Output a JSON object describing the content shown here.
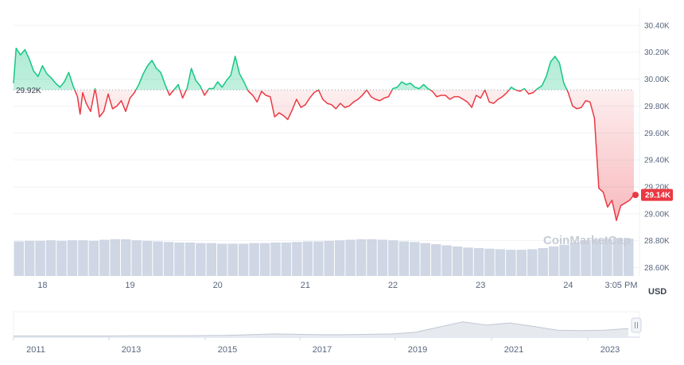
{
  "colors": {
    "up": "#16c784",
    "down": "#ea3943",
    "volume": "#cfd6e4",
    "grid": "#eff2f5",
    "axis_text": "#58667e",
    "navigator_line": "#c2c8d3"
  },
  "watermark": "CoinMarketCap",
  "currency_label": "USD",
  "reference_label": "29.92K",
  "current_price_label": "29.14K",
  "navigator": {
    "ticks": [
      "2011",
      "2013",
      "2015",
      "2017",
      "2019",
      "2021",
      "2023"
    ],
    "handle_icon": "pause-handle-icon"
  },
  "chart_data": {
    "type": "line",
    "xlabel": "",
    "ylabel": "",
    "ylim": [
      28550,
      30470
    ],
    "yticks": [
      "30.40K",
      "30.20K",
      "30.00K",
      "29.80K",
      "29.60K",
      "29.40K",
      "29.20K",
      "29.00K",
      "28.80K",
      "28.60K"
    ],
    "xticks": [
      "18",
      "19",
      "20",
      "21",
      "22",
      "23",
      "24",
      "3:05 PM"
    ],
    "reference_value": 29920,
    "current_value": 29140,
    "grid": true,
    "series": [
      {
        "values_x": [
          17.67,
          17.7,
          17.75,
          17.8,
          17.85,
          17.9,
          17.95,
          18.0,
          18.05,
          18.1,
          18.15,
          18.2,
          18.25,
          18.3,
          18.35,
          18.4,
          18.43,
          18.46,
          18.5,
          18.55,
          18.6,
          18.62,
          18.65,
          18.7,
          18.75,
          18.8,
          18.85,
          18.9,
          18.95,
          19.0,
          19.05,
          19.1,
          19.15,
          19.2,
          19.25,
          19.3,
          19.35,
          19.4,
          19.45,
          19.5,
          19.55,
          19.6,
          19.65,
          19.7,
          19.75,
          19.8,
          19.85,
          19.9,
          19.95,
          20.0,
          20.05,
          20.1,
          20.15,
          20.2,
          20.25,
          20.3,
          20.35,
          20.4,
          20.45,
          20.5,
          20.55,
          20.6,
          20.65,
          20.7,
          20.75,
          20.8,
          20.85,
          20.9,
          20.95,
          21.0,
          21.05,
          21.1,
          21.15,
          21.2,
          21.25,
          21.3,
          21.35,
          21.4,
          21.45,
          21.5,
          21.55,
          21.6,
          21.65,
          21.7,
          21.75,
          21.8,
          21.85,
          21.9,
          21.95,
          22.0,
          22.05,
          22.1,
          22.15,
          22.2,
          22.25,
          22.3,
          22.35,
          22.4,
          22.45,
          22.5,
          22.55,
          22.6,
          22.65,
          22.7,
          22.75,
          22.8,
          22.85,
          22.9,
          22.95,
          23.0,
          23.05,
          23.1,
          23.15,
          23.2,
          23.25,
          23.3,
          23.35,
          23.4,
          23.45,
          23.5,
          23.55,
          23.6,
          23.65,
          23.7,
          23.75,
          23.8,
          23.85,
          23.9,
          23.95,
          24.0,
          24.05,
          24.1,
          24.15,
          24.2,
          24.25,
          24.3,
          24.35,
          24.4,
          24.45,
          24.5,
          24.55,
          24.6,
          24.65,
          24.7,
          24.75
        ],
        "values": [
          29970,
          30230,
          30180,
          30220,
          30150,
          30060,
          30020,
          30100,
          30040,
          30010,
          29970,
          29940,
          29980,
          30050,
          29950,
          29870,
          29740,
          29900,
          29820,
          29760,
          29930,
          29860,
          29720,
          29760,
          29890,
          29780,
          29800,
          29840,
          29760,
          29860,
          29900,
          29960,
          30040,
          30100,
          30140,
          30080,
          30050,
          29960,
          29880,
          29920,
          29960,
          29860,
          29930,
          30080,
          29990,
          29950,
          29880,
          29930,
          29930,
          29980,
          29940,
          29990,
          30030,
          30170,
          30040,
          29980,
          29910,
          29880,
          29830,
          29910,
          29880,
          29870,
          29720,
          29750,
          29730,
          29700,
          29770,
          29850,
          29790,
          29810,
          29860,
          29900,
          29920,
          29850,
          29820,
          29810,
          29780,
          29820,
          29790,
          29800,
          29830,
          29850,
          29880,
          29920,
          29870,
          29850,
          29840,
          29860,
          29870,
          29930,
          29940,
          29980,
          29960,
          29970,
          29940,
          29930,
          29960,
          29930,
          29910,
          29870,
          29880,
          29880,
          29850,
          29870,
          29870,
          29850,
          29830,
          29790,
          29880,
          29860,
          29920,
          29830,
          29820,
          29850,
          29870,
          29900,
          29940,
          29920,
          29910,
          29930,
          29890,
          29900,
          29930,
          29950,
          30020,
          30130,
          30170,
          30120,
          29970,
          29900,
          29800,
          29780,
          29790,
          29840,
          29830,
          29710,
          29190,
          29160,
          29050,
          29100,
          28950,
          29060,
          29080,
          29100,
          29140
        ]
      }
    ],
    "volume": [
      0.62,
      0.63,
      0.63,
      0.64,
      0.63,
      0.64,
      0.64,
      0.63,
      0.65,
      0.66,
      0.66,
      0.64,
      0.63,
      0.62,
      0.61,
      0.6,
      0.6,
      0.59,
      0.59,
      0.58,
      0.58,
      0.58,
      0.59,
      0.59,
      0.6,
      0.6,
      0.61,
      0.62,
      0.62,
      0.63,
      0.64,
      0.65,
      0.66,
      0.66,
      0.65,
      0.64,
      0.62,
      0.61,
      0.59,
      0.57,
      0.55,
      0.53,
      0.51,
      0.5,
      0.49,
      0.48,
      0.47,
      0.47,
      0.48,
      0.5,
      0.53,
      0.56,
      0.6,
      0.64,
      0.66,
      0.66,
      0.68,
      0.67
    ],
    "navigator_values": [
      0.02,
      0.02,
      0.02,
      0.02,
      0.02,
      0.03,
      0.03,
      0.03,
      0.04,
      0.05,
      0.08,
      0.12,
      0.1,
      0.08,
      0.08,
      0.1,
      0.12,
      0.2,
      0.45,
      0.7,
      0.55,
      0.65,
      0.48,
      0.3,
      0.28,
      0.3,
      0.38
    ]
  }
}
